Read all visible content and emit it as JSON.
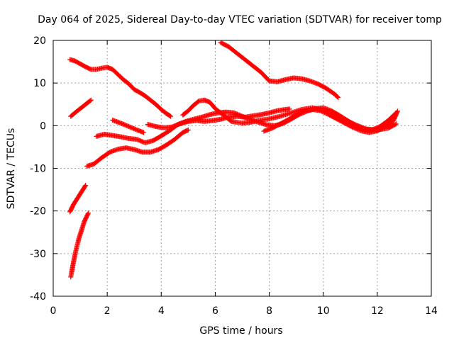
{
  "chart_data": {
    "type": "scatter",
    "title": "Day 064 of 2025, Sidereal Day-to-day VTEC variation (SDTVAR) for receiver tomp",
    "xlabel": "GPS time / hours",
    "ylabel": "SDTVAR / TECUs",
    "xlim": [
      0,
      14
    ],
    "ylim": [
      -40,
      20
    ],
    "xticks": [
      0,
      2,
      4,
      6,
      8,
      10,
      12,
      14
    ],
    "yticks": [
      -40,
      -30,
      -20,
      -10,
      0,
      10,
      20
    ],
    "grid": true,
    "marker": "+",
    "color": "#ff0000",
    "series": [
      {
        "x": [
          0.62,
          0.8,
          1.0,
          1.2,
          1.4,
          1.6,
          1.8,
          2.0,
          2.2,
          2.4,
          2.6,
          2.8,
          3.0,
          3.2,
          3.4,
          3.6,
          3.8,
          4.0,
          4.2,
          4.35
        ],
        "y": [
          15.5,
          15.2,
          14.5,
          13.8,
          13.2,
          13.2,
          13.5,
          13.7,
          13.2,
          12.0,
          10.8,
          9.8,
          8.5,
          7.8,
          7.0,
          6.0,
          5.0,
          3.8,
          2.8,
          2.2
        ]
      },
      {
        "x": [
          6.2,
          6.5,
          6.8,
          7.1,
          7.4,
          7.7,
          8.0,
          8.3,
          8.6,
          8.9,
          9.2,
          9.5,
          9.8,
          10.1,
          10.4,
          10.55
        ],
        "y": [
          19.5,
          18.5,
          17.0,
          15.5,
          14.0,
          12.5,
          10.5,
          10.3,
          10.8,
          11.2,
          11.0,
          10.5,
          9.8,
          8.8,
          7.5,
          6.6
        ]
      },
      {
        "x": [
          0.65,
          0.8,
          1.0,
          1.2,
          1.4
        ],
        "y": [
          2.2,
          3.0,
          4.0,
          5.0,
          6.0
        ]
      },
      {
        "x": [
          2.2,
          2.5,
          2.8,
          3.1,
          3.35
        ],
        "y": [
          1.3,
          0.6,
          -0.2,
          -1.0,
          -1.6
        ]
      },
      {
        "x": [
          3.5,
          3.8,
          4.1,
          4.4,
          4.7,
          5.0,
          5.3,
          5.6,
          5.9,
          6.2,
          6.5,
          6.8,
          7.1,
          7.4,
          7.7,
          8.0,
          8.3,
          8.6,
          8.75
        ],
        "y": [
          0.3,
          -0.2,
          -0.5,
          -0.3,
          0.5,
          1.0,
          1.2,
          1.0,
          1.2,
          1.5,
          2.0,
          2.2,
          2.0,
          2.3,
          2.6,
          3.0,
          3.5,
          3.8,
          3.9
        ]
      },
      {
        "x": [
          4.8,
          5.0,
          5.2,
          5.4,
          5.6,
          5.8,
          6.0,
          6.2,
          6.4,
          6.6,
          6.8,
          7.0,
          7.3,
          7.6,
          8.0,
          8.4,
          8.8,
          9.2,
          9.6,
          10.0,
          10.4,
          10.8,
          11.2,
          11.6,
          12.0,
          12.4,
          12.7
        ],
        "y": [
          2.5,
          3.5,
          4.8,
          5.8,
          6.0,
          5.5,
          4.0,
          3.0,
          2.0,
          1.0,
          0.8,
          0.6,
          0.8,
          1.2,
          1.6,
          2.2,
          3.0,
          3.8,
          4.2,
          3.6,
          2.5,
          1.4,
          0.2,
          -0.8,
          -1.0,
          -0.6,
          0.4
        ]
      },
      {
        "x": [
          1.6,
          1.9,
          2.2,
          2.5,
          2.8,
          3.1,
          3.4,
          3.7,
          4.0,
          4.3,
          4.6,
          4.9,
          5.2,
          5.5,
          5.8,
          6.1,
          6.4,
          6.7,
          7.0,
          7.3,
          7.6,
          7.9,
          8.2,
          8.5,
          8.8,
          9.1,
          9.4,
          9.7,
          10.0,
          10.3,
          10.6,
          10.9,
          11.2,
          11.5,
          11.8,
          12.1,
          12.4,
          12.7
        ],
        "y": [
          -2.5,
          -2.0,
          -2.3,
          -2.6,
          -3.0,
          -3.2,
          -4.0,
          -3.5,
          -2.4,
          -1.2,
          0.2,
          1.0,
          1.5,
          2.0,
          2.6,
          3.0,
          3.2,
          3.0,
          2.2,
          1.5,
          0.8,
          0.2,
          0.0,
          0.5,
          1.5,
          2.6,
          3.4,
          4.0,
          4.2,
          3.5,
          2.4,
          1.2,
          0.0,
          -0.8,
          -1.0,
          -0.2,
          1.2,
          3.0
        ]
      },
      {
        "x": [
          7.8,
          8.1,
          8.4,
          8.7,
          9.0,
          9.3,
          9.6,
          9.9,
          10.2,
          10.5,
          10.8,
          11.1,
          11.4,
          11.7,
          12.0,
          12.3,
          12.6,
          12.75
        ],
        "y": [
          -1.3,
          -0.6,
          0.4,
          1.4,
          2.6,
          3.5,
          3.8,
          3.5,
          2.6,
          1.6,
          0.6,
          -0.4,
          -1.2,
          -1.6,
          -1.2,
          -0.2,
          1.2,
          3.4
        ]
      },
      {
        "x": [
          1.25,
          1.5,
          1.8,
          2.1,
          2.4,
          2.7,
          3.0,
          3.3,
          3.6,
          3.9,
          4.2,
          4.5,
          4.8,
          5.0
        ],
        "y": [
          -9.5,
          -9.0,
          -7.5,
          -6.2,
          -5.5,
          -5.2,
          -5.6,
          -6.2,
          -6.2,
          -5.6,
          -4.5,
          -3.2,
          -1.6,
          -1.0
        ]
      },
      {
        "x": [
          0.62,
          0.75,
          0.9,
          1.05,
          1.2
        ],
        "y": [
          -20.2,
          -18.5,
          -17.0,
          -15.5,
          -14.0
        ]
      },
      {
        "x": [
          0.65,
          0.75,
          0.85,
          0.95,
          1.05,
          1.15,
          1.3
        ],
        "y": [
          -35.5,
          -32.0,
          -29.0,
          -26.5,
          -24.5,
          -22.5,
          -20.5
        ]
      }
    ]
  }
}
